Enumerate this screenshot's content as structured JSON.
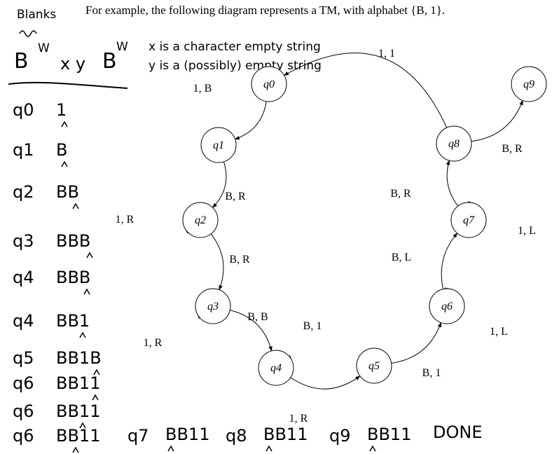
{
  "caption": "For example, the following diagram represents a TM, with alphabet {B, 1}.",
  "notes": {
    "blanks_word": "Blanks",
    "tape_pattern": {
      "b1": "B",
      "w1": "W",
      "xy": "x y",
      "b2": "B",
      "w2": "W"
    },
    "x_def": "x is a character empty string",
    "y_def": "y is a (possibly) empty string"
  },
  "trace": [
    {
      "state": "q0",
      "tape": "1"
    },
    {
      "state": "q1",
      "tape": "B"
    },
    {
      "state": "q2",
      "tape": "BB"
    },
    {
      "state": "q3",
      "tape": "BBB"
    },
    {
      "state": "q4",
      "tape": "BBB"
    },
    {
      "state": "q4",
      "tape": "BB1"
    },
    {
      "state": "q5",
      "tape": "BB1B"
    },
    {
      "state": "q6",
      "tape": "BB11"
    },
    {
      "state": "q6",
      "tape": "BB11"
    },
    {
      "state": "q6",
      "tape": "BB11"
    }
  ],
  "bottom_trace": [
    {
      "state": "q7",
      "tape": "BB11"
    },
    {
      "state": "q8",
      "tape": "BB11"
    },
    {
      "state": "q9",
      "tape": "BB11"
    }
  ],
  "done": "DONE",
  "states": [
    "q0",
    "q1",
    "q2",
    "q3",
    "q4",
    "q5",
    "q6",
    "q7",
    "q8",
    "q9"
  ],
  "edges": [
    {
      "from": "q0",
      "to": "q1",
      "label": "1, B"
    },
    {
      "from": "q1",
      "to": "q2",
      "label": "B, R"
    },
    {
      "from": "q2",
      "to": "q2",
      "label": "1, R"
    },
    {
      "from": "q2",
      "to": "q3",
      "label": "B, R"
    },
    {
      "from": "q3",
      "to": "q3",
      "label": "1, R"
    },
    {
      "from": "q3",
      "to": "q4",
      "label": "B, B"
    },
    {
      "from": "q4",
      "to": "q4",
      "label": "B, 1"
    },
    {
      "from": "q4",
      "to": "q5",
      "label": "1, R"
    },
    {
      "from": "q5",
      "to": "q6",
      "label": "B, 1"
    },
    {
      "from": "q6",
      "to": "q6",
      "label": "1, L"
    },
    {
      "from": "q6",
      "to": "q7",
      "label": "B, L"
    },
    {
      "from": "q7",
      "to": "q7",
      "label": "1, L"
    },
    {
      "from": "q7",
      "to": "q8",
      "label": "B, R"
    },
    {
      "from": "q8",
      "to": "q9",
      "label": "B, R"
    },
    {
      "from": "q8",
      "to": "q0",
      "label": "1, 1"
    }
  ]
}
